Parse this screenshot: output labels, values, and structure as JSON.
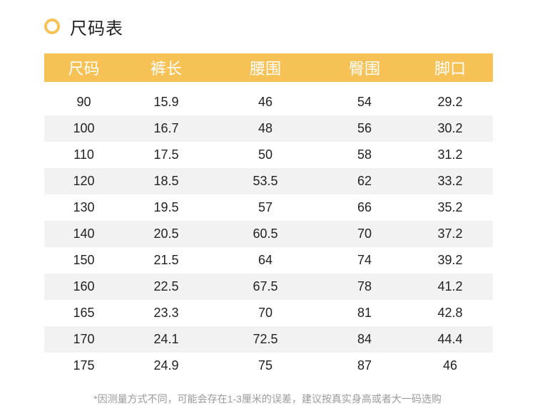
{
  "header": {
    "title": "尺码表",
    "accent_color": "#f7c255"
  },
  "table": {
    "columns": [
      "尺码",
      "裤长",
      "腰围",
      "臀围",
      "脚口"
    ],
    "rows": [
      [
        "90",
        "15.9",
        "46",
        "54",
        "29.2"
      ],
      [
        "100",
        "16.7",
        "48",
        "56",
        "30.2"
      ],
      [
        "110",
        "17.5",
        "50",
        "58",
        "31.2"
      ],
      [
        "120",
        "18.5",
        "53.5",
        "62",
        "33.2"
      ],
      [
        "130",
        "19.5",
        "57",
        "66",
        "35.2"
      ],
      [
        "140",
        "20.5",
        "60.5",
        "70",
        "37.2"
      ],
      [
        "150",
        "21.5",
        "64",
        "74",
        "39.2"
      ],
      [
        "160",
        "22.5",
        "67.5",
        "78",
        "41.2"
      ],
      [
        "165",
        "23.3",
        "70",
        "81",
        "42.8"
      ],
      [
        "170",
        "24.1",
        "72.5",
        "84",
        "44.4"
      ],
      [
        "175",
        "24.9",
        "75",
        "87",
        "46"
      ]
    ]
  },
  "note": "*因测量方式不同，可能会存在1-3厘米的误差，建议按真实身高或者大一码选购"
}
